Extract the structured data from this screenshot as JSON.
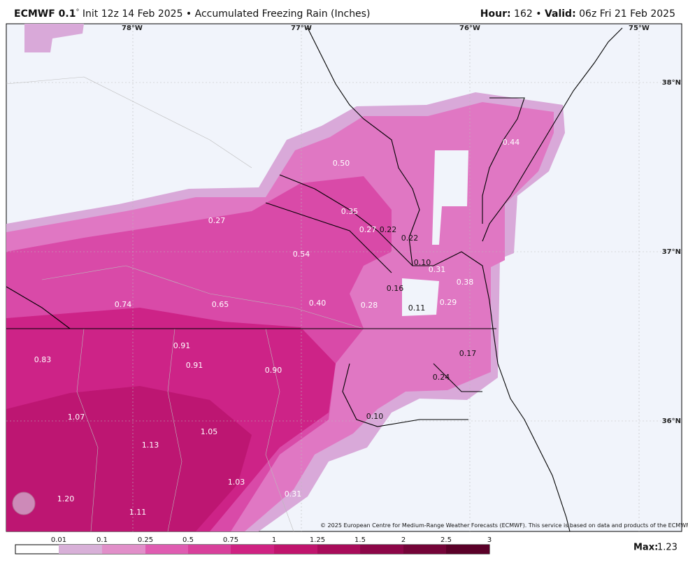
{
  "header": {
    "model": "ECMWF 0.1",
    "degree": "°",
    "init_product": "Init 12z 14 Feb 2025 • Accumulated Freezing Rain (Inches)",
    "hour_label": "Hour:",
    "hour": "162 •",
    "valid_label": "Valid:",
    "valid": "06z Fri 21 Feb 2025"
  },
  "map": {
    "lon_labels": [
      "78°W",
      "77°W",
      "76°W",
      "75°W"
    ],
    "lat_labels": [
      "38°N",
      "37°N",
      "36°N"
    ],
    "point_labels": [
      "0.44",
      "0.50",
      "0.35",
      "0.27",
      "0.27",
      "0.22",
      "0.22",
      "0.54",
      "0.10",
      "0.31",
      "0.38",
      "0.16",
      "0.11",
      "0.29",
      "0.74",
      "0.65",
      "0.40",
      "0.28",
      "0.91",
      "0.91",
      "0.90",
      "0.83",
      "0.17",
      "0.24",
      "0.10",
      "1.07",
      "1.13",
      "1.05",
      "1.03",
      "0.31",
      "1.20",
      "1.11"
    ],
    "copyright": "© 2025 European Centre for Medium-Range Weather Forecasts (ECMWF). This service is based on data and products of the ECMWF."
  },
  "legend": {
    "labels": [
      "0.01",
      "0.1",
      "0.25",
      "0.5",
      "0.75",
      "1",
      "1.25",
      "1.5",
      "2",
      "2.5",
      "3"
    ],
    "max_label": "Max:",
    "max": "1.23"
  }
}
